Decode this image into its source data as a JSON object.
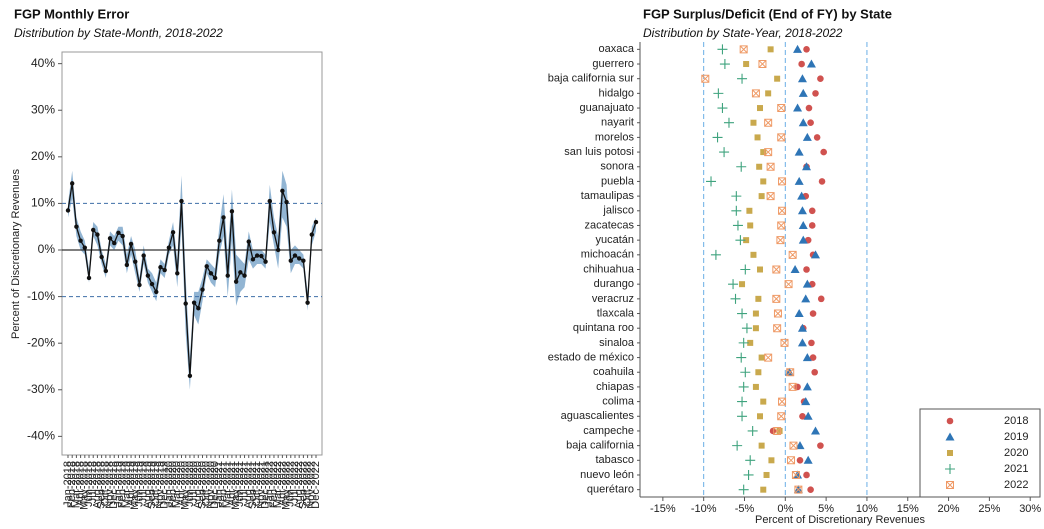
{
  "chart_data": [
    {
      "type": "line",
      "title": "FGP Monthly Error",
      "subtitle": "Distribution by State-Month, 2018-2022",
      "y_label": "Percent of Discretionary Revenues",
      "categories": [
        "Jan-2018",
        "Feb-2018",
        "Mar-2018",
        "Apr-2018",
        "May-2018",
        "Jun-2018",
        "Jul-2018",
        "Aug-2018",
        "Sep-2018",
        "Oct-2018",
        "Nov-2018",
        "Dec-2018",
        "Jan-2019",
        "Feb-2019",
        "Mar-2019",
        "Apr-2019",
        "May-2019",
        "Jun-2019",
        "Jul-2019",
        "Aug-2019",
        "Sep-2019",
        "Oct-2019",
        "Nov-2019",
        "Dec-2019",
        "Jan-2020",
        "Feb-2020",
        "Mar-2020",
        "Apr-2020",
        "May-2020",
        "Jun-2020",
        "Jul-2020",
        "Aug-2020",
        "Sep-2020",
        "Oct-2020",
        "Nov-2020",
        "Dec-2020",
        "Jan-2021",
        "Feb-2021",
        "Mar-2021",
        "Apr-2021",
        "May-2021",
        "Jun-2021",
        "Jul-2021",
        "Aug-2021",
        "Sep-2021",
        "Oct-2021",
        "Nov-2021",
        "Dec-2021",
        "Jan-2022",
        "Feb-2022",
        "Mar-2022",
        "Apr-2022",
        "May-2022",
        "Jun-2022",
        "Jul-2022",
        "Aug-2022",
        "Sep-2022",
        "Oct-2022",
        "Nov-2022",
        "Dec-2022"
      ],
      "values": [
        8.5,
        14.3,
        5,
        2,
        0.5,
        -6,
        4.3,
        3.3,
        -1.5,
        -4.5,
        2.5,
        1.5,
        3.7,
        3,
        -3.2,
        1.3,
        -2.5,
        -7.5,
        -1.2,
        -5.5,
        -7.3,
        -9,
        -3.7,
        -4.3,
        0.5,
        3.8,
        -5,
        10.5,
        -11.5,
        -27,
        -11.3,
        -12.5,
        -8.5,
        -3.5,
        -5,
        -6,
        2,
        7,
        -5.5,
        8.3,
        -6.8,
        -4.8,
        -5.5,
        1.8,
        -2,
        -1.2,
        -1.3,
        -2.5,
        10.5,
        3.8,
        0,
        12.7,
        10.3,
        -2.3,
        -1.2,
        -1.8,
        -2.3,
        -11.3,
        3.3,
        6
      ],
      "band": {
        "lower": [
          7,
          11,
          3,
          0,
          -1,
          -7,
          3,
          1,
          -3,
          -6,
          1,
          0,
          2,
          1,
          -5,
          -1,
          -5,
          -9,
          -3,
          -7,
          -9,
          -11,
          -5,
          -6,
          -1,
          1,
          -8,
          5,
          -18,
          -30,
          -14,
          -16,
          -11,
          -5,
          -7,
          -8,
          -1,
          3,
          -10,
          2,
          -12,
          -9,
          -8,
          -2,
          -4,
          -3,
          -3,
          -4,
          6,
          1,
          -4,
          7,
          5,
          -5,
          -3,
          -3,
          -4,
          -13,
          1,
          4
        ],
        "upper": [
          10,
          17,
          7,
          4,
          2,
          -4,
          6,
          5,
          0,
          -3,
          4,
          3,
          5,
          5,
          -1,
          3,
          0,
          -6,
          1,
          -4,
          -5,
          -7,
          -2,
          -3,
          2,
          6,
          -2,
          16,
          -6,
          -23,
          -9,
          -9,
          -6,
          -2,
          -3,
          -4,
          5,
          12,
          -1,
          13,
          -1,
          -2,
          -3,
          4,
          0,
          0,
          0,
          -1,
          14,
          7,
          3,
          17,
          14,
          0,
          1,
          0,
          -1,
          -9,
          5,
          7
        ]
      },
      "color": "#111111",
      "band_color": "#6d9cc4",
      "ylim": [
        -44,
        42.5
      ],
      "yticks": [
        {
          "value": -40,
          "label": "-40%"
        },
        {
          "value": -30,
          "label": "-30%"
        },
        {
          "value": -20,
          "label": "-20%"
        },
        {
          "value": -10,
          "label": "-10%"
        },
        {
          "value": 0,
          "label": "0%"
        },
        {
          "value": 10,
          "label": "10%"
        },
        {
          "value": 20,
          "label": "20%"
        },
        {
          "value": 30,
          "label": "30%"
        },
        {
          "value": 40,
          "label": "40%"
        }
      ],
      "reference_lines": [
        {
          "value": -10,
          "style": "dashed",
          "color": "#3f6fa8"
        },
        {
          "value": 10,
          "style": "dashed",
          "color": "#3f6fa8"
        },
        {
          "value": 0,
          "style": "solid",
          "color": "#333333"
        }
      ]
    },
    {
      "type": "dot",
      "title": "FGP Surplus/Deficit (End of FY) by State",
      "subtitle": "Distribution by State-Year, 2018-2022",
      "x_label": "Percent of Discretionary Revenues",
      "categories": [
        "oaxaca",
        "guerrero",
        "baja california sur",
        "hidalgo",
        "guanajuato",
        "nayarit",
        "morelos",
        "san luis potosi",
        "sonora",
        "puebla",
        "tamaulipas",
        "jalisco",
        "zacatecas",
        "yucatán",
        "michoacán",
        "chihuahua",
        "durango",
        "veracruz",
        "tlaxcala",
        "quintana roo",
        "sinaloa",
        "estado de méxico",
        "coahuila",
        "chiapas",
        "colima",
        "aguascalientes",
        "campeche",
        "baja california",
        "tabasco",
        "nuevo león",
        "querétaro"
      ],
      "series": [
        {
          "name": "2018",
          "color": "#d0524f",
          "marker": "circle",
          "values": [
            2.6,
            2.0,
            4.3,
            3.7,
            2.9,
            3.1,
            3.9,
            4.7,
            2.6,
            4.5,
            2.5,
            3.3,
            3.3,
            2.8,
            3.4,
            2.6,
            3.3,
            4.4,
            3.4,
            2.2,
            3.2,
            3.4,
            3.6,
            1.5,
            2.3,
            2.1,
            -1.5,
            4.3,
            1.8,
            2.6,
            3.1
          ]
        },
        {
          "name": "2019",
          "color": "#2e75b6",
          "marker": "triangle",
          "values": [
            1.5,
            3.2,
            2.1,
            2.2,
            1.5,
            2.2,
            2.7,
            1.7,
            2.6,
            1.7,
            2.0,
            2.1,
            2.2,
            2.2,
            3.7,
            1.2,
            2.7,
            2.5,
            1.7,
            2.1,
            2.1,
            2.7,
            0.5,
            2.7,
            2.5,
            2.8,
            3.7,
            1.8,
            2.8,
            1.5,
            1.6
          ]
        },
        {
          "name": "2020",
          "color": "#c9a94d",
          "marker": "square",
          "values": [
            -1.8,
            -4.8,
            -1,
            -2.1,
            -3.1,
            -3.9,
            -3.4,
            -2.7,
            -3.2,
            -2.7,
            -2.9,
            -4.4,
            -4.3,
            -4.8,
            -3.9,
            -3.1,
            -5.3,
            -3.3,
            -3.6,
            -3.6,
            -4.3,
            -2.9,
            -3.3,
            -3.6,
            -2.7,
            -3.1,
            -0.7,
            -2.9,
            -1.7,
            -2.3,
            -2.7
          ]
        },
        {
          "name": "2021",
          "color": "#3fa37e",
          "marker": "plus",
          "values": [
            -7.7,
            -7.4,
            -5.3,
            -8.2,
            -7.7,
            -6.9,
            -8.3,
            -7.5,
            -5.4,
            -9.1,
            -6,
            -6,
            -5.8,
            -5.5,
            -8.5,
            -4.9,
            -6.4,
            -6.1,
            -5.3,
            -4.7,
            -5.1,
            -5.4,
            -4.9,
            -5.1,
            -5.3,
            -5.3,
            -4.0,
            -5.9,
            -4.3,
            -4.5,
            -5.1
          ]
        },
        {
          "name": "2022",
          "color": "#ef9a66",
          "marker": "square-x",
          "values": [
            -5.1,
            -2.8,
            -9.8,
            -3.6,
            -0.5,
            -2.1,
            -0.5,
            -2.1,
            -1.8,
            -0.4,
            -1.8,
            -0.4,
            -0.5,
            -0.6,
            0.9,
            -1.1,
            0.4,
            -1.1,
            -0.9,
            -1,
            -0.1,
            -2.1,
            0.6,
            0.9,
            -0.4,
            -0.5,
            -1,
            1,
            0.7,
            1.3,
            1.6
          ]
        }
      ],
      "xlim": [
        -17.8,
        31.2
      ],
      "xticks": [
        {
          "value": -15,
          "label": "-15%"
        },
        {
          "value": -10,
          "label": "-10%"
        },
        {
          "value": -5,
          "label": "-5%"
        },
        {
          "value": 0,
          "label": "0%"
        },
        {
          "value": 5,
          "label": "5%"
        },
        {
          "value": 10,
          "label": "10%"
        },
        {
          "value": 15,
          "label": "15%"
        },
        {
          "value": 20,
          "label": "20%"
        },
        {
          "value": 25,
          "label": "25%"
        },
        {
          "value": 30,
          "label": "30%"
        }
      ],
      "reference_lines": [
        {
          "value": -10,
          "style": "dashed",
          "color": "#6aaee6"
        },
        {
          "value": 0,
          "style": "dashed",
          "color": "#6aaee6"
        },
        {
          "value": 10,
          "style": "dashed",
          "color": "#6aaee6"
        }
      ],
      "legend": "bottom-right"
    }
  ]
}
